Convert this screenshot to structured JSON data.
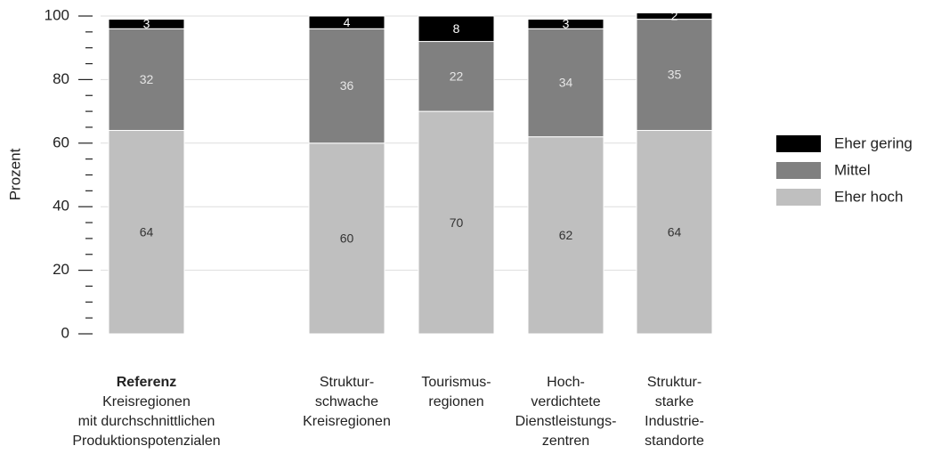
{
  "chart_data": {
    "type": "stacked_bar",
    "ylabel": "Prozent",
    "categories": [
      [
        "Referenz",
        "Kreisregionen",
        "mit durchschnittlichen",
        "Produktionspotenzialen"
      ],
      [
        "Struktur-",
        "schwache",
        "Kreisregionen"
      ],
      [
        "Tourismus-",
        "regionen"
      ],
      [
        "Hoch-",
        "verdichtete",
        "Dienstleistungs-",
        "zentren"
      ],
      [
        "Struktur-",
        "starke",
        "Industrie-",
        "standorte"
      ]
    ],
    "series": [
      {
        "name": "Eher hoch",
        "color": "#bfbfbf",
        "label_color": "#333333",
        "values": [
          64,
          60,
          70,
          62,
          64
        ]
      },
      {
        "name": "Mittel",
        "color": "#808080",
        "label_color": "#e6e6e6",
        "values": [
          32,
          36,
          22,
          34,
          35
        ]
      },
      {
        "name": "Eher gering",
        "color": "#000000",
        "label_color": "#ffffff",
        "values": [
          3,
          4,
          8,
          3,
          2
        ]
      }
    ],
    "ylim": [
      0,
      100
    ],
    "yticks": [
      0,
      20,
      40,
      60,
      80,
      100
    ],
    "yticks_minor": [
      5,
      10,
      15,
      25,
      30,
      35,
      45,
      50,
      55,
      65,
      70,
      75,
      85,
      90,
      95
    ],
    "grid": true,
    "legend": "right"
  }
}
